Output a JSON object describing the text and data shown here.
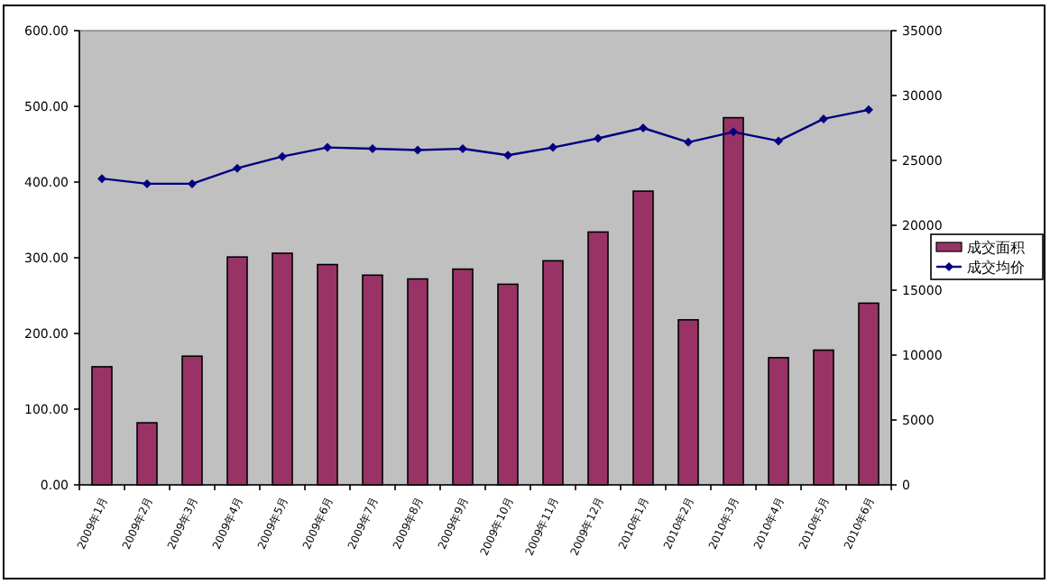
{
  "chart_data": {
    "type": "bar",
    "categories": [
      "2009年1月",
      "2009年2月",
      "2009年3月",
      "2009年4月",
      "2009年5月",
      "2009年6月",
      "2009年7月",
      "2009年8月",
      "2009年9月",
      "2009年10月",
      "2009年11月",
      "2009年12月",
      "2010年1月",
      "2010年2月",
      "2010年3月",
      "2010年4月",
      "2010年5月",
      "2010年6月"
    ],
    "series": [
      {
        "name": "成交面积",
        "color": "#993366",
        "values": [
          156,
          82,
          170,
          301,
          306,
          291,
          277,
          272,
          285,
          265,
          296,
          334,
          388,
          218,
          485,
          168,
          178,
          240
        ]
      },
      {
        "name": "成交均价",
        "type": "line",
        "axis": "y2",
        "color": "#000080",
        "marker": "diamond",
        "values": [
          23600,
          23200,
          23200,
          24400,
          25300,
          26000,
          25900,
          25800,
          25900,
          25400,
          26000,
          26700,
          27500,
          26400,
          27200,
          26500,
          28200,
          28900
        ]
      }
    ],
    "ylim": [
      0,
      600
    ],
    "yticks": [
      {
        "value": 0,
        "label": "0.00"
      },
      {
        "value": 100,
        "label": "100.00"
      },
      {
        "value": 200,
        "label": "200.00"
      },
      {
        "value": 300,
        "label": "300.00"
      },
      {
        "value": 400,
        "label": "400.00"
      },
      {
        "value": 500,
        "label": "500.00"
      },
      {
        "value": 600,
        "label": "600.00"
      }
    ],
    "y2lim": [
      0,
      35000
    ],
    "y2ticks": [
      0,
      5000,
      10000,
      15000,
      20000,
      25000,
      30000,
      35000
    ],
    "legend": "right",
    "grid": false
  }
}
